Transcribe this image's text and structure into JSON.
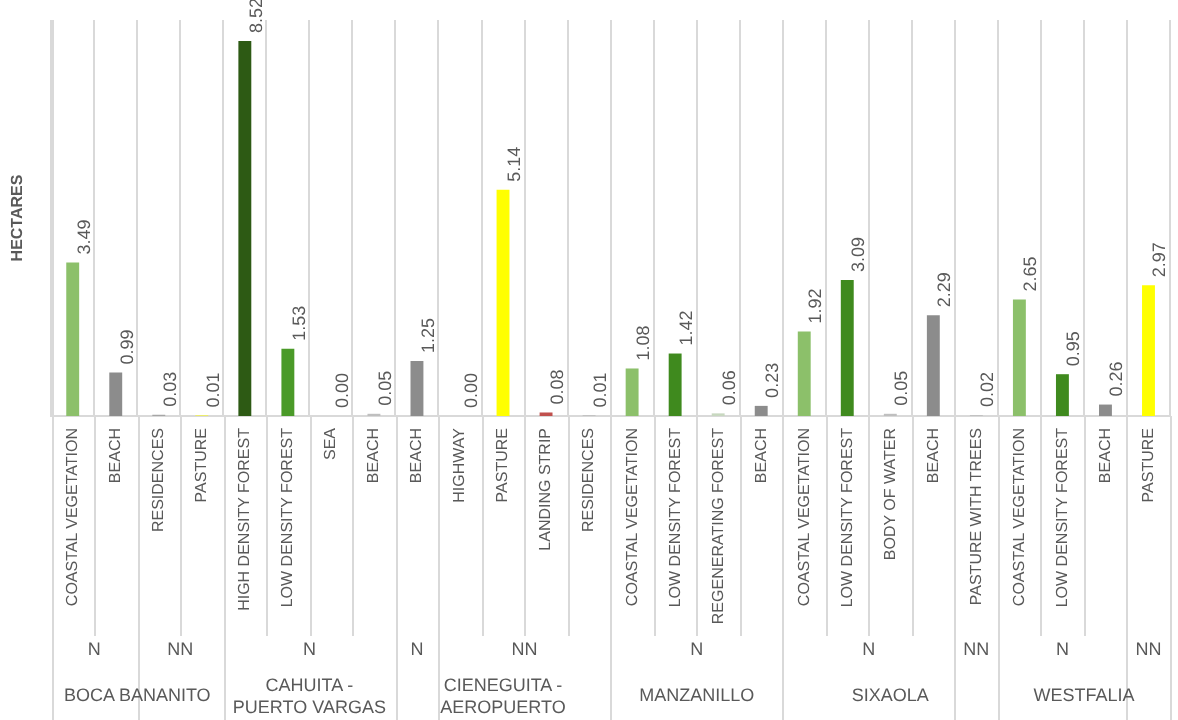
{
  "chart_data": {
    "type": "bar",
    "ylabel": "HECTARES",
    "categories": [
      "COASTAL VEGETATION",
      "BEACH",
      "RESIDENCES",
      "PASTURE",
      "HIGH DENSITY FOREST",
      "LOW DENSITY FOREST",
      "SEA",
      "BEACH",
      "BEACH",
      "HIGHWAY",
      "PASTURE",
      "LANDING STRIP",
      "RESIDENCES",
      "COASTAL VEGETATION",
      "LOW DENSITY FOREST",
      "REGENERATING FOREST",
      "BEACH",
      "COASTAL VEGETATION",
      "LOW DENSITY FOREST",
      "BODY OF WATER",
      "BEACH",
      "PASTURE WITH TREES",
      "COASTAL VEGETATION",
      "LOW DENSITY FOREST",
      "BEACH",
      "PASTURE"
    ],
    "values": [
      3.49,
      0.99,
      0.03,
      0.01,
      8.52,
      1.53,
      0.0,
      0.05,
      1.25,
      0.0,
      5.14,
      0.08,
      0.01,
      1.08,
      1.42,
      0.06,
      0.23,
      1.92,
      3.09,
      0.05,
      2.29,
      0.02,
      2.65,
      0.95,
      0.26,
      2.97
    ],
    "colors": [
      "#8cc06a",
      "#8c8c8c",
      "#a6a6a6",
      "#ffff00",
      "#2d5a14",
      "#4a9a28",
      "#bfbfbf",
      "#bfbfbf",
      "#8c8c8c",
      "#bfbfbf",
      "#ffff00",
      "#c0504d",
      "#a6a6a6",
      "#8cc06a",
      "#3f8a1e",
      "#c8d8c0",
      "#8c8c8c",
      "#8cc06a",
      "#3f8a1e",
      "#bfbfbf",
      "#8c8c8c",
      "#bfbfbf",
      "#8cc06a",
      "#3f8a1e",
      "#8c8c8c",
      "#ffff00"
    ],
    "value_labels": [
      "3.49",
      "0.99",
      "0.03",
      "0.01",
      "8.52",
      "1.53",
      "0.00",
      "0.05",
      "1.25",
      "0.00",
      "5.14",
      "0.08",
      "0.01",
      "1.08",
      "1.42",
      "0.06",
      "0.23",
      "1.92",
      "3.09",
      "0.05",
      "2.29",
      "0.02",
      "2.65",
      "0.95",
      "0.26",
      "2.97"
    ],
    "grid": "x",
    "annotations": [
      "N",
      "NN",
      "N",
      "N",
      "NN",
      "N",
      "N",
      "NN",
      "N",
      "NN",
      "BOCA BANANITO",
      "CAHUITA - PUERTO VARGAS",
      "CIENEGUITA - AEROPUERTO",
      "MANZANILLO",
      "SIXAOLA",
      "WESTFALIA"
    ]
  }
}
